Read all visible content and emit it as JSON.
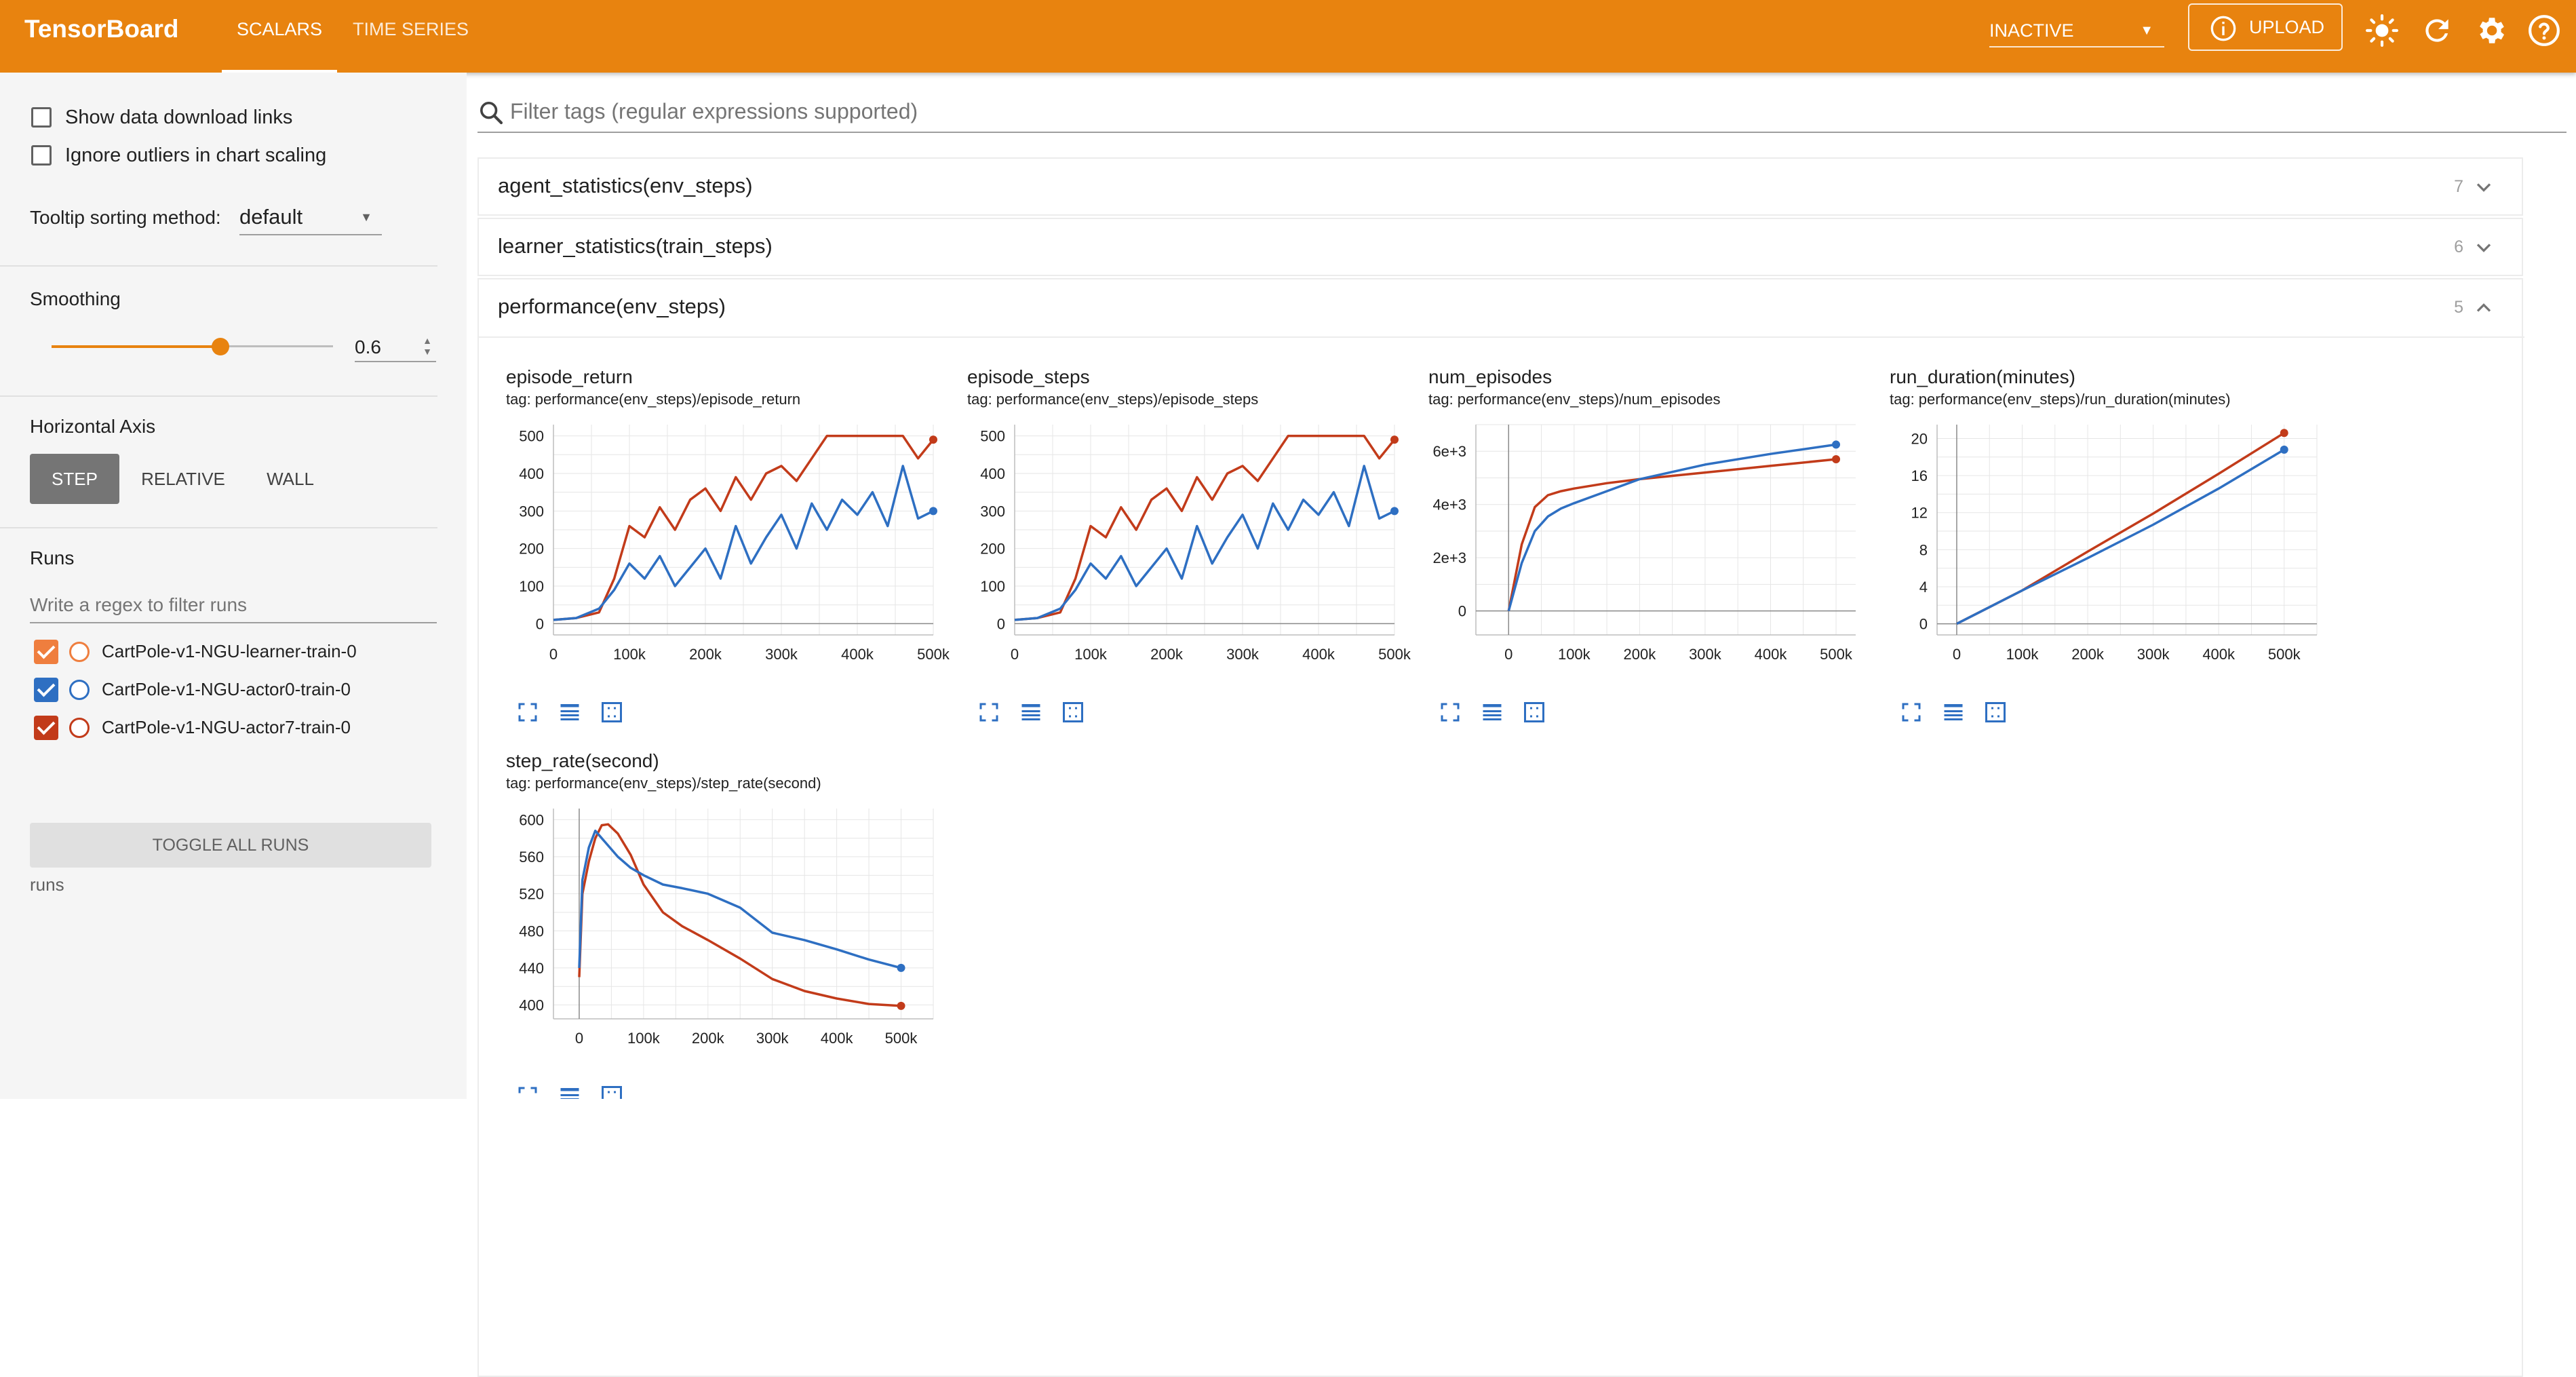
{
  "header": {
    "brand": "TensorBoard",
    "tabs": [
      "SCALARS",
      "TIME SERIES"
    ],
    "reload_select": "INACTIVE",
    "upload_label": "UPLOAD",
    "accent": "#e8830f"
  },
  "sidebar": {
    "show_download_links": "Show data download links",
    "ignore_outliers": "Ignore outliers in chart scaling",
    "tooltip_sorting_label": "Tooltip sorting method:",
    "tooltip_sorting_value": "default",
    "smoothing_label": "Smoothing",
    "smoothing_value": "0.6",
    "smoothing_fraction": 0.6,
    "horizontal_axis_label": "Horizontal Axis",
    "axis_options": [
      "STEP",
      "RELATIVE",
      "WALL"
    ],
    "axis_selected": "STEP",
    "runs_label": "Runs",
    "runs_filter_placeholder": "Write a regex to filter runs",
    "runs": [
      {
        "name": "CartPole-v1-NGU-learner-train-0",
        "color": "#ef7e3e",
        "checked": true
      },
      {
        "name": "CartPole-v1-NGU-actor0-train-0",
        "color": "#2e6fc2",
        "checked": true
      },
      {
        "name": "CartPole-v1-NGU-actor7-train-0",
        "color": "#c23b1a",
        "checked": true
      }
    ],
    "toggle_all": "TOGGLE ALL RUNS",
    "runs_footer": "runs"
  },
  "main": {
    "filter_placeholder": "Filter tags (regular expressions supported)",
    "groups": [
      {
        "name": "agent_statistics(env_steps)",
        "count": "7",
        "expanded": false
      },
      {
        "name": "learner_statistics(train_steps)",
        "count": "6",
        "expanded": false
      },
      {
        "name": "performance(env_steps)",
        "count": "5",
        "expanded": true
      }
    ]
  },
  "chart_data": [
    {
      "type": "line",
      "title": "episode_return",
      "tag": "tag: performance(env_steps)/episode_return",
      "xlim": [
        0,
        500000
      ],
      "ylim": [
        -30,
        530
      ],
      "xticks": [
        0,
        100000,
        200000,
        300000,
        400000,
        500000
      ],
      "xtick_labels": [
        "0",
        "100k",
        "200k",
        "300k",
        "400k",
        "500k"
      ],
      "yticks": [
        0,
        100,
        200,
        300,
        400,
        500
      ],
      "ytick_labels": [
        "0",
        "100",
        "200",
        "300",
        "400",
        "500"
      ],
      "grid": true,
      "series": [
        {
          "color": "#c23b1a",
          "x": [
            0,
            30000,
            60000,
            80000,
            100000,
            120000,
            140000,
            160000,
            180000,
            200000,
            220000,
            240000,
            260000,
            280000,
            300000,
            320000,
            340000,
            360000,
            380000,
            400000,
            420000,
            440000,
            460000,
            480000,
            500000
          ],
          "y": [
            10,
            15,
            30,
            120,
            260,
            230,
            310,
            250,
            330,
            360,
            300,
            390,
            330,
            400,
            420,
            380,
            440,
            500,
            500,
            500,
            500,
            500,
            500,
            440,
            490
          ]
        },
        {
          "color": "#2e6fc2",
          "x": [
            0,
            30000,
            60000,
            80000,
            100000,
            120000,
            140000,
            160000,
            180000,
            200000,
            220000,
            240000,
            260000,
            280000,
            300000,
            320000,
            340000,
            360000,
            380000,
            400000,
            420000,
            440000,
            460000,
            480000,
            500000
          ],
          "y": [
            10,
            15,
            40,
            90,
            160,
            120,
            180,
            100,
            150,
            200,
            120,
            260,
            160,
            230,
            290,
            200,
            320,
            250,
            330,
            290,
            350,
            260,
            420,
            280,
            300
          ]
        }
      ]
    },
    {
      "type": "line",
      "title": "episode_steps",
      "tag": "tag: performance(env_steps)/episode_steps",
      "xlim": [
        0,
        500000
      ],
      "ylim": [
        -30,
        530
      ],
      "xticks": [
        0,
        100000,
        200000,
        300000,
        400000,
        500000
      ],
      "xtick_labels": [
        "0",
        "100k",
        "200k",
        "300k",
        "400k",
        "500k"
      ],
      "yticks": [
        0,
        100,
        200,
        300,
        400,
        500
      ],
      "ytick_labels": [
        "0",
        "100",
        "200",
        "300",
        "400",
        "500"
      ],
      "grid": true,
      "series": [
        {
          "color": "#c23b1a",
          "x": [
            0,
            30000,
            60000,
            80000,
            100000,
            120000,
            140000,
            160000,
            180000,
            200000,
            220000,
            240000,
            260000,
            280000,
            300000,
            320000,
            340000,
            360000,
            380000,
            400000,
            420000,
            440000,
            460000,
            480000,
            500000
          ],
          "y": [
            10,
            15,
            30,
            120,
            260,
            230,
            310,
            250,
            330,
            360,
            300,
            390,
            330,
            400,
            420,
            380,
            440,
            500,
            500,
            500,
            500,
            500,
            500,
            440,
            490
          ]
        },
        {
          "color": "#2e6fc2",
          "x": [
            0,
            30000,
            60000,
            80000,
            100000,
            120000,
            140000,
            160000,
            180000,
            200000,
            220000,
            240000,
            260000,
            280000,
            300000,
            320000,
            340000,
            360000,
            380000,
            400000,
            420000,
            440000,
            460000,
            480000,
            500000
          ],
          "y": [
            10,
            15,
            40,
            90,
            160,
            120,
            180,
            100,
            150,
            200,
            120,
            260,
            160,
            230,
            290,
            200,
            320,
            250,
            330,
            290,
            350,
            260,
            420,
            280,
            300
          ]
        }
      ]
    },
    {
      "type": "line",
      "title": "num_episodes",
      "tag": "tag: performance(env_steps)/num_episodes",
      "xlim": [
        -50000,
        530000
      ],
      "ylim": [
        -900,
        7000
      ],
      "xticks": [
        0,
        100000,
        200000,
        300000,
        400000,
        500000
      ],
      "xtick_labels": [
        "0",
        "100k",
        "200k",
        "300k",
        "400k",
        "500k"
      ],
      "yticks": [
        0,
        2000,
        4000,
        6000
      ],
      "ytick_labels": [
        "0",
        "2e+3",
        "4e+3",
        "6e+3"
      ],
      "grid": true,
      "series": [
        {
          "color": "#c23b1a",
          "x": [
            0,
            20000,
            40000,
            60000,
            80000,
            100000,
            150000,
            200000,
            300000,
            400000,
            500000
          ],
          "y": [
            0,
            2500,
            3900,
            4350,
            4500,
            4600,
            4800,
            4950,
            5200,
            5450,
            5700
          ]
        },
        {
          "color": "#2e6fc2",
          "x": [
            0,
            20000,
            40000,
            60000,
            80000,
            100000,
            150000,
            200000,
            300000,
            400000,
            500000
          ],
          "y": [
            0,
            1800,
            3000,
            3550,
            3850,
            4050,
            4500,
            4950,
            5500,
            5900,
            6250
          ]
        }
      ]
    },
    {
      "type": "line",
      "title": "run_duration(minutes)",
      "tag": "tag: performance(env_steps)/run_duration(minutes)",
      "xlim": [
        -30000,
        550000
      ],
      "ylim": [
        -1.2,
        21.5
      ],
      "xticks": [
        0,
        100000,
        200000,
        300000,
        400000,
        500000
      ],
      "xtick_labels": [
        "0",
        "100k",
        "200k",
        "300k",
        "400k",
        "500k"
      ],
      "yticks": [
        0,
        4,
        8,
        12,
        16,
        20
      ],
      "ytick_labels": [
        "0",
        "4",
        "8",
        "12",
        "16",
        "20"
      ],
      "grid": true,
      "series": [
        {
          "color": "#c23b1a",
          "x": [
            0,
            100000,
            200000,
            300000,
            400000,
            500000
          ],
          "y": [
            0,
            3.6,
            7.8,
            11.9,
            16.2,
            20.6
          ]
        },
        {
          "color": "#2e6fc2",
          "x": [
            0,
            100000,
            200000,
            300000,
            400000,
            500000
          ],
          "y": [
            0,
            3.6,
            7.1,
            10.7,
            14.6,
            18.8
          ]
        }
      ]
    },
    {
      "type": "line",
      "title": "step_rate(second)",
      "tag": "tag: performance(env_steps)/step_rate(second)",
      "xlim": [
        -40000,
        550000
      ],
      "ylim": [
        385,
        612
      ],
      "xticks": [
        0,
        100000,
        200000,
        300000,
        400000,
        500000
      ],
      "xtick_labels": [
        "0",
        "100k",
        "200k",
        "300k",
        "400k",
        "500k"
      ],
      "yticks": [
        400,
        440,
        480,
        520,
        560,
        600
      ],
      "ytick_labels": [
        "400",
        "440",
        "480",
        "520",
        "560",
        "600"
      ],
      "grid": true,
      "series": [
        {
          "color": "#c23b1a",
          "x": [
            0,
            5000,
            15000,
            25000,
            35000,
            45000,
            60000,
            80000,
            100000,
            130000,
            160000,
            200000,
            250000,
            300000,
            350000,
            400000,
            450000,
            500000
          ],
          "y": [
            430,
            520,
            555,
            580,
            594,
            595,
            585,
            562,
            530,
            500,
            485,
            470,
            450,
            428,
            415,
            407,
            401,
            399
          ]
        },
        {
          "color": "#2e6fc2",
          "x": [
            0,
            5000,
            15000,
            25000,
            35000,
            45000,
            60000,
            80000,
            100000,
            130000,
            160000,
            200000,
            250000,
            300000,
            350000,
            400000,
            450000,
            500000
          ],
          "y": [
            440,
            535,
            570,
            588,
            580,
            572,
            560,
            548,
            540,
            530,
            526,
            520,
            505,
            478,
            470,
            460,
            449,
            440
          ]
        }
      ]
    }
  ]
}
